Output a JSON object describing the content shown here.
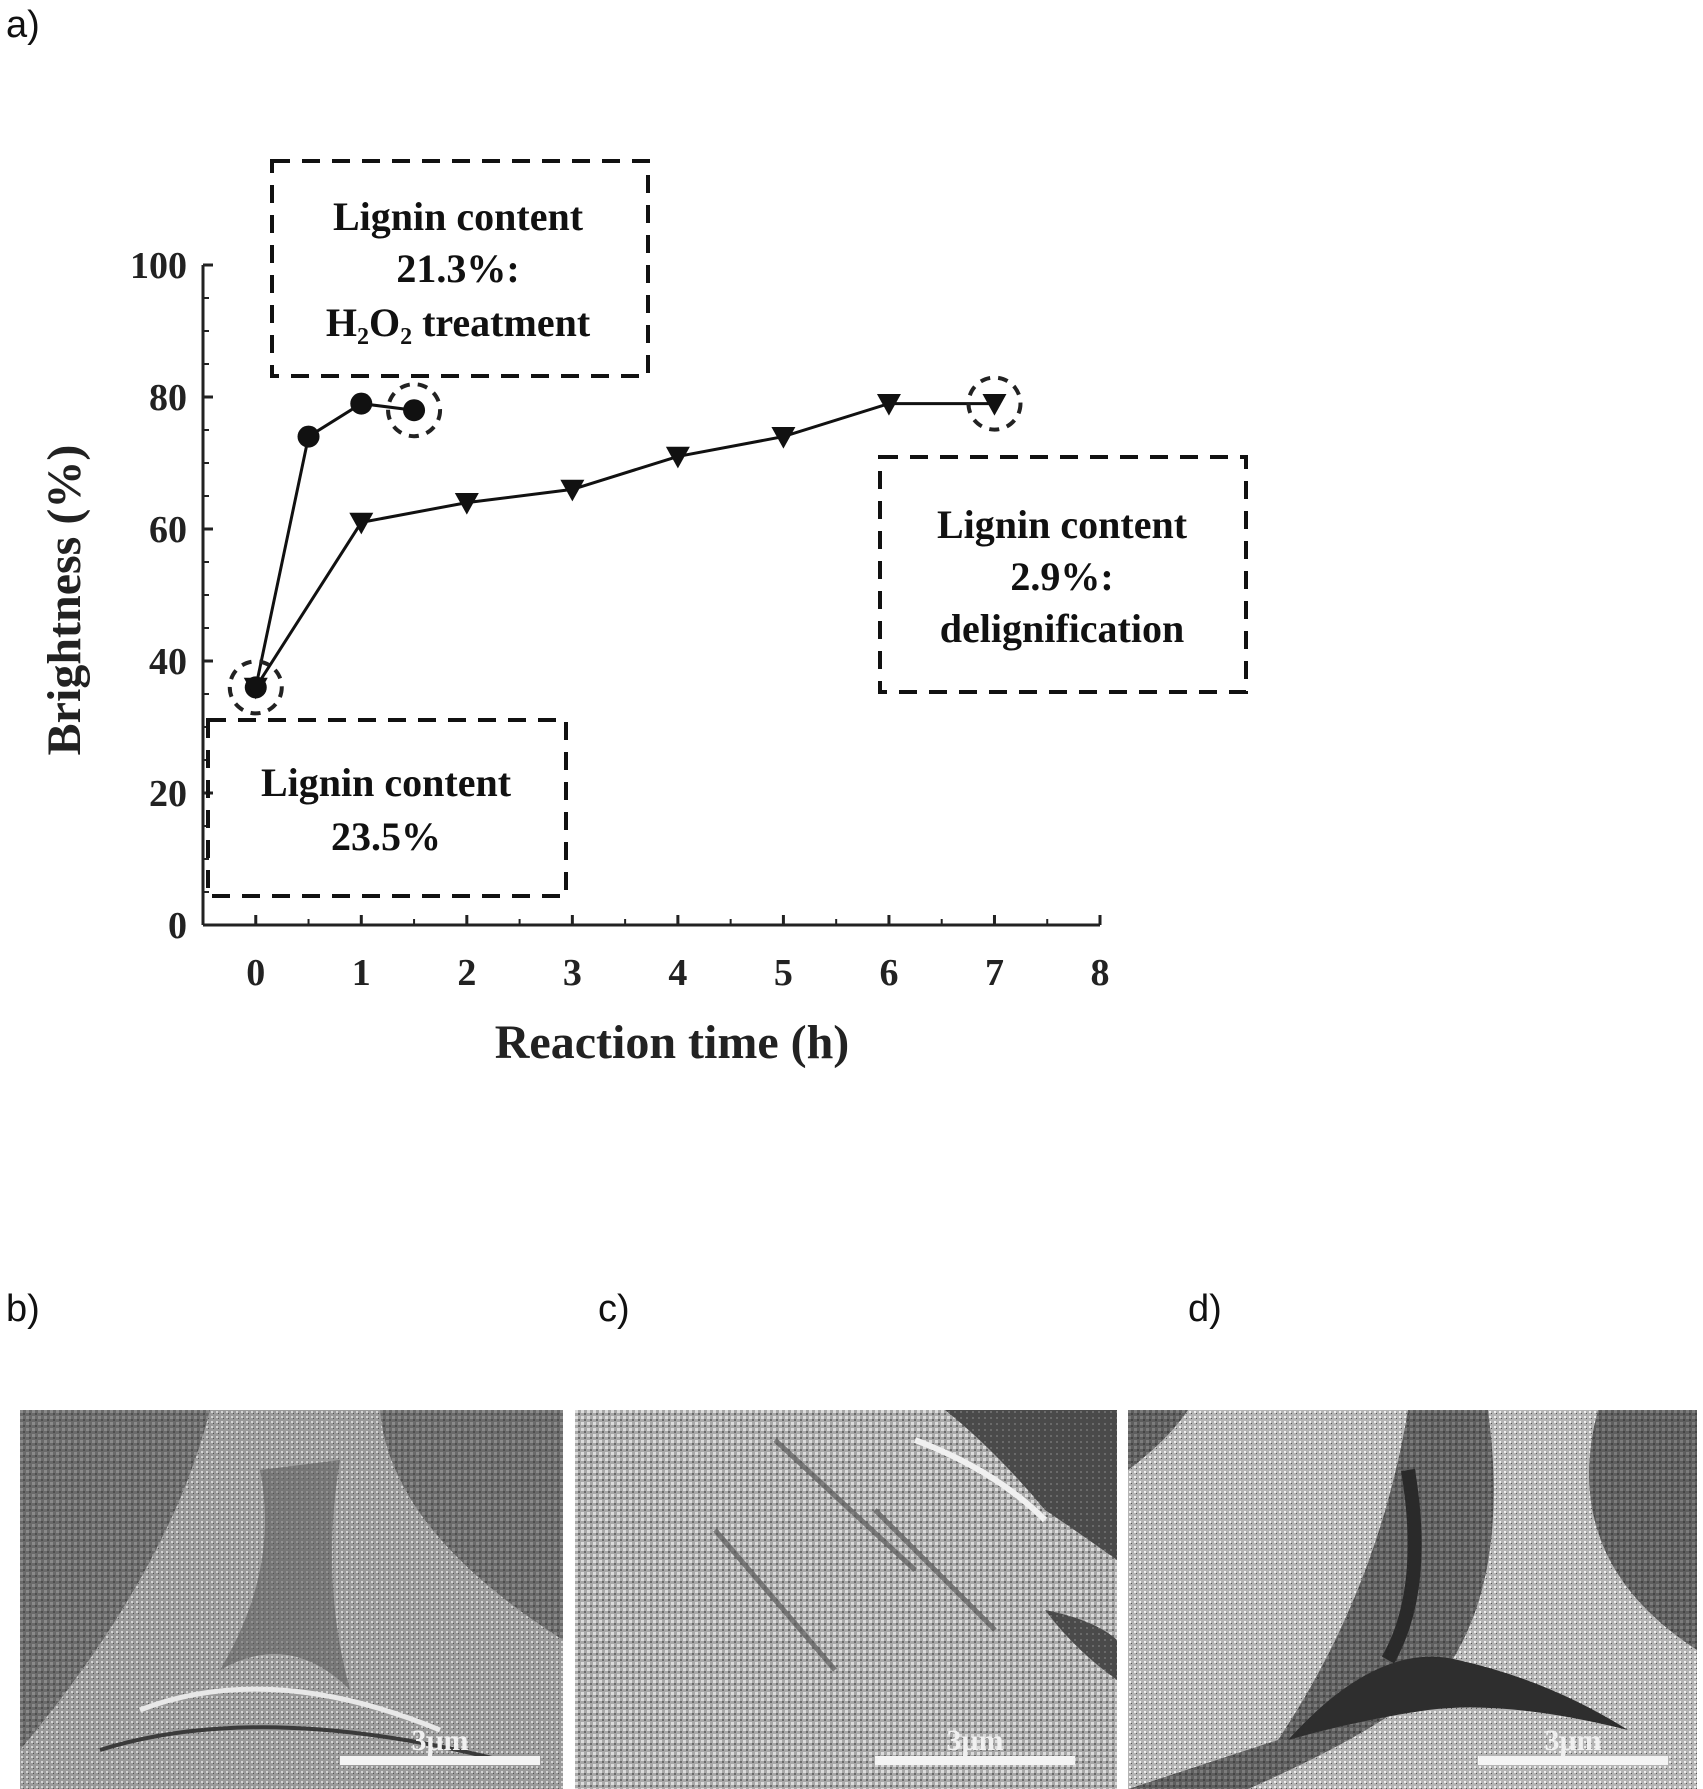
{
  "panels": {
    "a": "a)",
    "b": "b)",
    "c": "c)",
    "d": "d)"
  },
  "chart_data": {
    "type": "line",
    "title": "",
    "xlabel": "Reaction time (h)",
    "ylabel": "Brightness (%)",
    "xlim": [
      -0.5,
      8
    ],
    "ylim": [
      0,
      100
    ],
    "x_ticks": [
      0,
      1,
      2,
      3,
      4,
      5,
      6,
      7,
      8
    ],
    "y_ticks": [
      0,
      20,
      40,
      60,
      80,
      100
    ],
    "grid": false,
    "legend": "none",
    "series": [
      {
        "marker": "circle",
        "color": "#111111",
        "x": [
          0,
          0.5,
          1,
          1.5
        ],
        "y": [
          36,
          74,
          79,
          78
        ]
      },
      {
        "marker": "triangle-down",
        "color": "#111111",
        "x": [
          0,
          1,
          2,
          3,
          4,
          5,
          6,
          7
        ],
        "y": [
          36,
          61,
          64,
          66,
          71,
          74,
          79,
          79
        ]
      }
    ],
    "highlighted_points": [
      {
        "x": 0,
        "y": 36
      },
      {
        "x": 1.5,
        "y": 78
      },
      {
        "x": 7,
        "y": 79
      }
    ],
    "annotations": [
      {
        "lines": [
          "Lignin content",
          "21.3%:",
          "H₂O₂ treatment"
        ]
      },
      {
        "lines": [
          "Lignin content",
          "2.9%:",
          "delignification"
        ]
      },
      {
        "lines": [
          "Lignin content",
          "23.5%"
        ]
      }
    ]
  },
  "sem_images": [
    {
      "scale_bar": "3μm"
    },
    {
      "scale_bar": "3μm"
    },
    {
      "scale_bar": "3μm"
    }
  ]
}
